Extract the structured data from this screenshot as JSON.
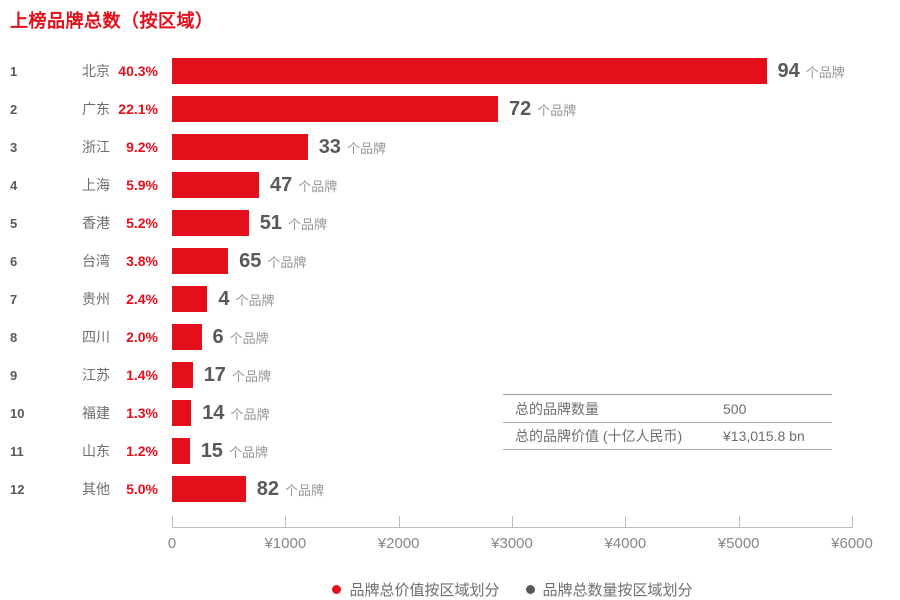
{
  "page": {
    "title": "上榜品牌总数（按区域）"
  },
  "chart_data": {
    "type": "bar",
    "title": "上榜品牌总数（按区域）",
    "orientation": "horizontal",
    "count_suffix": "个品牌",
    "regions": [
      {
        "rank": 1,
        "name": "北京",
        "pct": 40.3,
        "brands": 94
      },
      {
        "rank": 2,
        "name": "广东",
        "pct": 22.1,
        "brands": 72
      },
      {
        "rank": 3,
        "name": "浙江",
        "pct": 9.2,
        "brands": 33
      },
      {
        "rank": 4,
        "name": "上海",
        "pct": 5.9,
        "brands": 47
      },
      {
        "rank": 5,
        "name": "香港",
        "pct": 5.2,
        "brands": 51
      },
      {
        "rank": 6,
        "name": "台湾",
        "pct": 3.8,
        "brands": 65
      },
      {
        "rank": 7,
        "name": "贵州",
        "pct": 2.4,
        "brands": 4
      },
      {
        "rank": 8,
        "name": "四川",
        "pct": 2.0,
        "brands": 6
      },
      {
        "rank": 9,
        "name": "江苏",
        "pct": 1.4,
        "brands": 17
      },
      {
        "rank": 10,
        "name": "福建",
        "pct": 1.3,
        "brands": 14
      },
      {
        "rank": 11,
        "name": "山东",
        "pct": 1.2,
        "brands": 15
      },
      {
        "rank": 12,
        "name": "其他",
        "pct": 5.0,
        "brands": 82
      }
    ],
    "total_value_bn": 13015.8,
    "axis": {
      "ticks": [
        "0",
        "¥1000",
        "¥2000",
        "¥3000",
        "¥4000",
        "¥5000",
        "¥6000"
      ],
      "max": 6000
    },
    "legend": [
      {
        "label": "品牌总价值按区域划分",
        "color": "#e3101c"
      },
      {
        "label": "品牌总数量按区域划分",
        "color": "#58595b"
      }
    ],
    "summary_table": {
      "rows": [
        {
          "label": "总的品牌数量",
          "value": "500"
        },
        {
          "label": "总的品牌价值 (十亿人民币)",
          "value": "¥13,015.8 bn"
        }
      ]
    },
    "colors": {
      "bar": "#e3101c",
      "accent_text": "#e3101c"
    }
  }
}
